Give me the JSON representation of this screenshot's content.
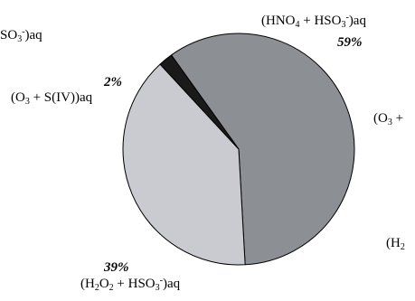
{
  "chart_data": {
    "type": "pie",
    "slices": [
      {
        "label": "(HNO4 + HSO3-)aq",
        "value": 59,
        "pct_label": "59%",
        "color": "#8c8f94"
      },
      {
        "label": "(H2O2 + HSO3-)aq",
        "value": 39,
        "pct_label": "39%",
        "color": "#c9cbd0"
      },
      {
        "label": "(O3 + S(IV))aq",
        "value": 2,
        "pct_label": "2%",
        "color": "#1a1a1a"
      }
    ],
    "stroke_color": "#000000"
  },
  "cut_labels": {
    "top_left": "SO3-)aq",
    "right_o3": "(O3 +",
    "right_h2": "(H2"
  }
}
